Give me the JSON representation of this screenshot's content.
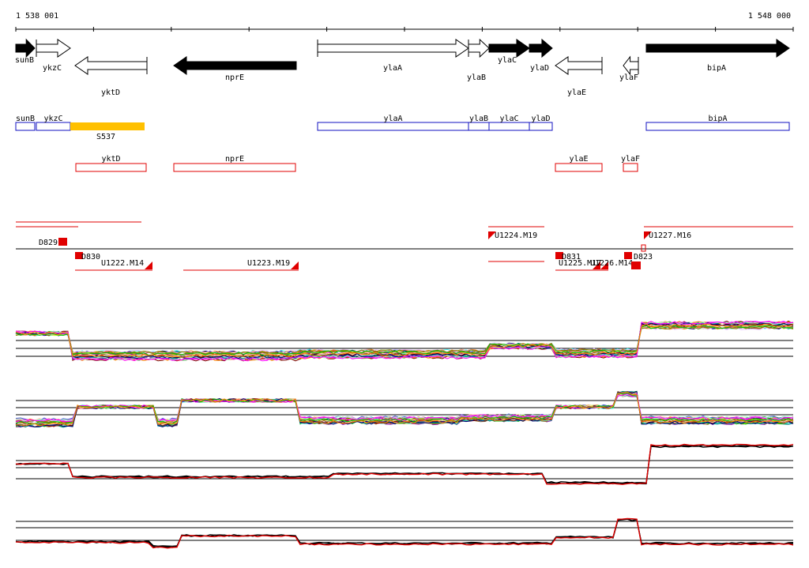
{
  "coordinates": {
    "start_label": "1 538 001",
    "end_label": "1 548 000"
  },
  "colors": {
    "gene_dark": "#000000",
    "gene_light": "#ffffff",
    "blue_box": "#1010c0",
    "red_box": "#e00000",
    "s537": "#ffc000",
    "track_line": "#000000",
    "red_profile": "#e00000"
  },
  "genes": [
    {
      "name": "sunB",
      "strand": "+",
      "fill": "dark"
    },
    {
      "name": "ykzC",
      "strand": "+",
      "fill": "light"
    },
    {
      "name": "yktD",
      "strand": "-",
      "fill": "light"
    },
    {
      "name": "nprE",
      "strand": "-",
      "fill": "dark"
    },
    {
      "name": "ylaA",
      "strand": "+",
      "fill": "light"
    },
    {
      "name": "ylaB",
      "strand": "+",
      "fill": "light"
    },
    {
      "name": "ylaC",
      "strand": "+",
      "fill": "dark"
    },
    {
      "name": "ylaD",
      "strand": "+",
      "fill": "dark"
    },
    {
      "name": "ylaE",
      "strand": "-",
      "fill": "light"
    },
    {
      "name": "ylaF",
      "strand": "-",
      "fill": "light"
    },
    {
      "name": "bipA",
      "strand": "+",
      "fill": "dark"
    }
  ],
  "blue_features": [
    "sunB",
    "ykzC",
    "ylaA",
    "ylaB",
    "ylaC",
    "ylaD",
    "bipA"
  ],
  "yellow_feature": {
    "name": "S537"
  },
  "red_features": [
    "yktD",
    "nprE",
    "ylaE",
    "ylaF"
  ],
  "transcript_markers": [
    {
      "label": "D829"
    },
    {
      "label": "D830"
    },
    {
      "label": "U1222.M14"
    },
    {
      "label": "U1223.M19"
    },
    {
      "label": "U1224.M19"
    },
    {
      "label": "D831"
    },
    {
      "label": "U1225.M17"
    },
    {
      "label": "U1226.M14"
    },
    {
      "label": "D823"
    },
    {
      "label": "U1227.M16"
    }
  ],
  "profile_tracks": [
    {
      "kind": "multicolor",
      "series_count": 40
    },
    {
      "kind": "multicolor",
      "series_count": 40
    },
    {
      "kind": "summary",
      "series_count": 3
    },
    {
      "kind": "summary",
      "series_count": 3
    }
  ],
  "multicolor_palette": [
    "#e6194b",
    "#3cb44b",
    "#4363d8",
    "#f58231",
    "#911eb4",
    "#46f0f0",
    "#f032e6",
    "#bcf60c",
    "#fabebe",
    "#008080",
    "#e6beff",
    "#9a6324",
    "#800000",
    "#aaffc3",
    "#808000",
    "#ffd8b1",
    "#000075",
    "#ff00ff",
    "#00c000",
    "#ff8000"
  ]
}
